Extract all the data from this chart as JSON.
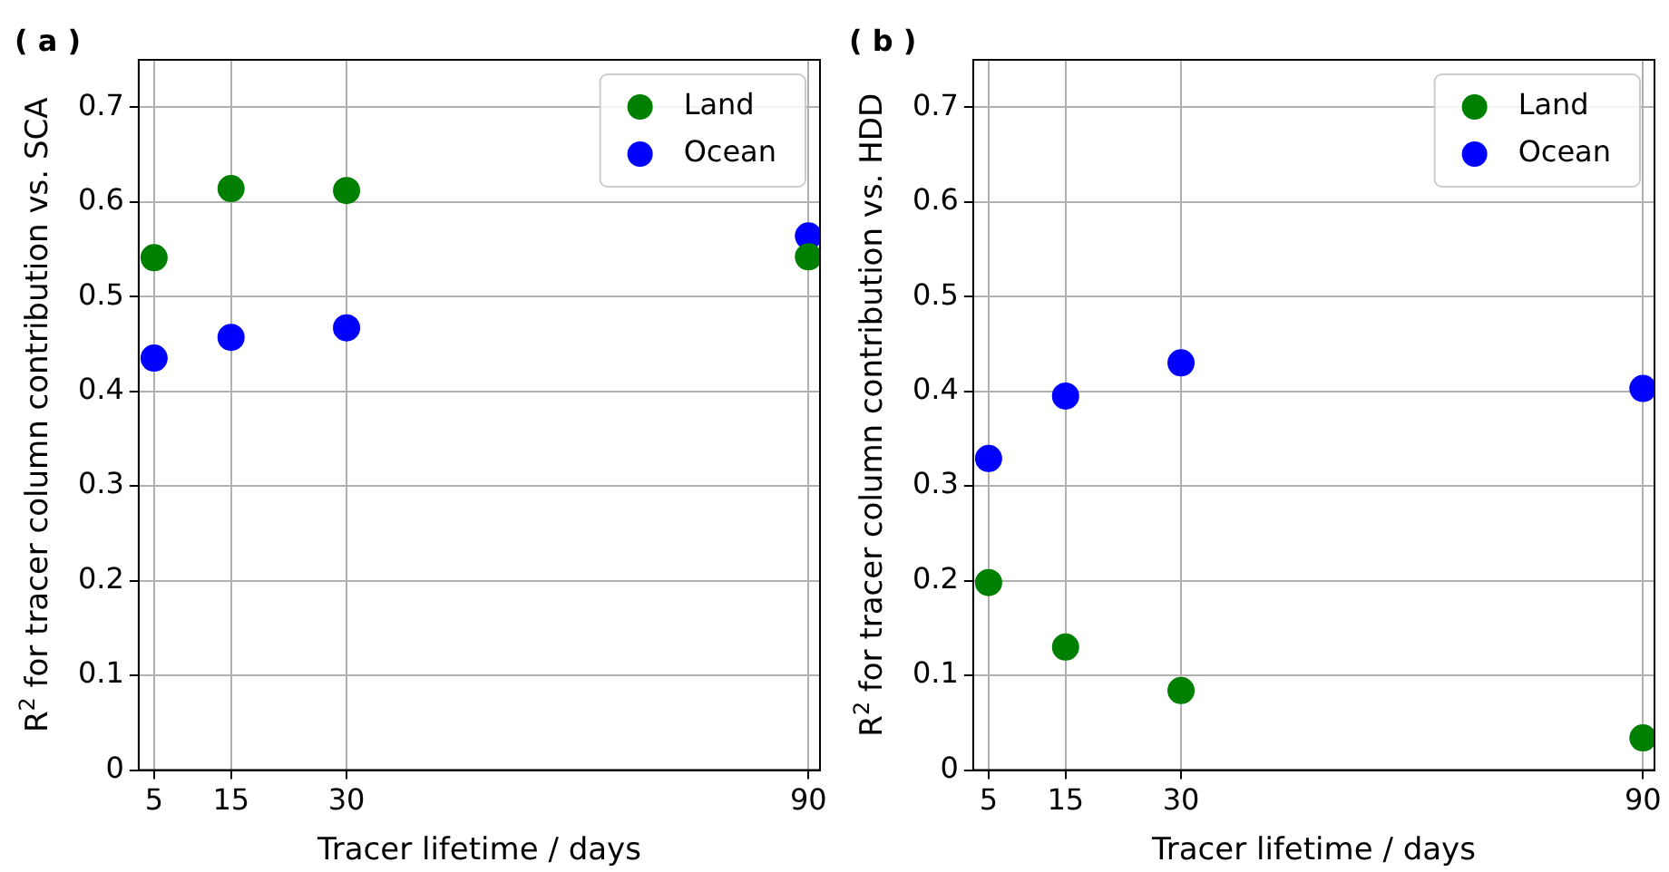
{
  "chart_data": [
    {
      "type": "scatter",
      "title": "( a )",
      "xlabel": "Tracer lifetime / days",
      "ylabel": "R$^{2}$ for tracer column contribution vs. SCA",
      "x": [
        5,
        15,
        30,
        90
      ],
      "series": [
        {
          "name": "Land",
          "color": "#008000",
          "values": [
            0.541,
            0.614,
            0.612,
            0.542
          ]
        },
        {
          "name": "Ocean",
          "color": "#0000ff",
          "values": [
            0.435,
            0.457,
            0.467,
            0.564
          ]
        }
      ],
      "xlim": [
        3,
        91.5
      ],
      "xticks": [
        5,
        15,
        30,
        90
      ],
      "ylim": [
        0,
        0.75
      ],
      "yticks": [
        0,
        0.1,
        0.2,
        0.3,
        0.4,
        0.5,
        0.6,
        0.7
      ],
      "grid": true,
      "legend": "top right",
      "marker": "circle"
    },
    {
      "type": "scatter",
      "title": "( b )",
      "xlabel": "Tracer lifetime / days",
      "ylabel": "R$^{2}$ for tracer column contribution vs. HDD",
      "x": [
        5,
        15,
        30,
        90
      ],
      "series": [
        {
          "name": "Land",
          "color": "#008000",
          "values": [
            0.198,
            0.13,
            0.084,
            0.034
          ]
        },
        {
          "name": "Ocean",
          "color": "#0000ff",
          "values": [
            0.329,
            0.395,
            0.43,
            0.403
          ]
        }
      ],
      "xlim": [
        3,
        91.5
      ],
      "xticks": [
        5,
        15,
        30,
        90
      ],
      "ylim": [
        0,
        0.75
      ],
      "yticks": [
        0,
        0.1,
        0.2,
        0.3,
        0.4,
        0.5,
        0.6,
        0.7
      ],
      "grid": true,
      "legend": "top right",
      "marker": "circle"
    }
  ]
}
